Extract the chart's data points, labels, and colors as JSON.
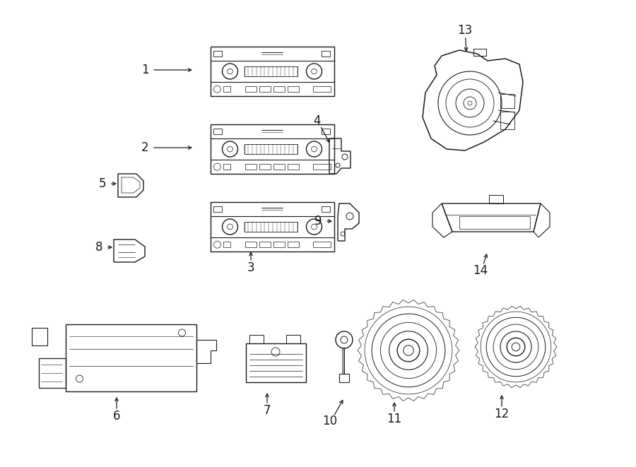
{
  "bg_color": "#ffffff",
  "line_color": "#1a1a1a",
  "lw": 1.0,
  "fig_width": 9.0,
  "fig_height": 6.61,
  "dpi": 100
}
